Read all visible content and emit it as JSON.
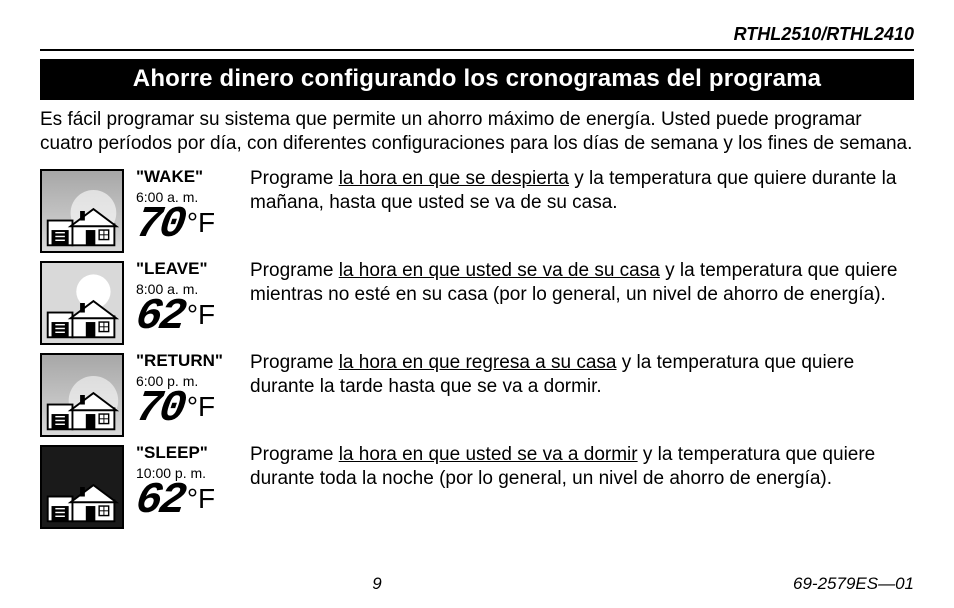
{
  "model": "RTHL2510/RTHL2410",
  "title": "Ahorre dinero configurando los cronogramas del programa",
  "intro": "Es fácil programar su sistema que permite un ahorro máximo de energía. Usted puede programar cuatro períodos por día, con diferentes configuraciones para los días de semana y los fines de semana.",
  "periods": [
    {
      "name": "\"WAKE\"",
      "time": "6:00 a. m.",
      "temp": "70",
      "unit": "°F",
      "desc_pre": "Programe ",
      "desc_under": "la hora en que se despierta",
      "desc_post": " y la temperatura que quiere durante la mañana, hasta que usted se va de su casa.",
      "icon": "dawn"
    },
    {
      "name": "\"LEAVE\"",
      "time": "8:00 a. m.",
      "temp": "62",
      "unit": "°F",
      "desc_pre": "Programe ",
      "desc_under": "la hora en que usted se va de su casa",
      "desc_post": " y la temperatura que quiere mientras no esté en su casa (por lo general, un nivel de ahorro de energía).",
      "icon": "day"
    },
    {
      "name": "\"RETURN\"",
      "time": "6:00 p. m.",
      "temp": "70",
      "unit": "°F",
      "desc_pre": "Programe ",
      "desc_under": "la hora en que regresa a su casa",
      "desc_post": " y la temperatura que quiere durante la tarde hasta que se va a dormir.",
      "icon": "dusk"
    },
    {
      "name": "\"SLEEP\"",
      "time": "10:00 p. m.",
      "temp": "62",
      "unit": "°F",
      "desc_pre": "Programe ",
      "desc_under": "la hora en que usted se va a dormir",
      "desc_post": " y la temperatura que quiere durante toda la noche (por lo general, un nivel de ahorro de energía).",
      "icon": "night"
    }
  ],
  "page_number": "9",
  "doc_id": "69-2579ES—01",
  "colors": {
    "text": "#000000",
    "bg": "#ffffff",
    "title_bg": "#000000",
    "title_fg": "#ffffff",
    "sky_light": "#d9d9d9",
    "sky_mid": "#a7a7a7",
    "sky_dark": "#1a1a1a"
  }
}
